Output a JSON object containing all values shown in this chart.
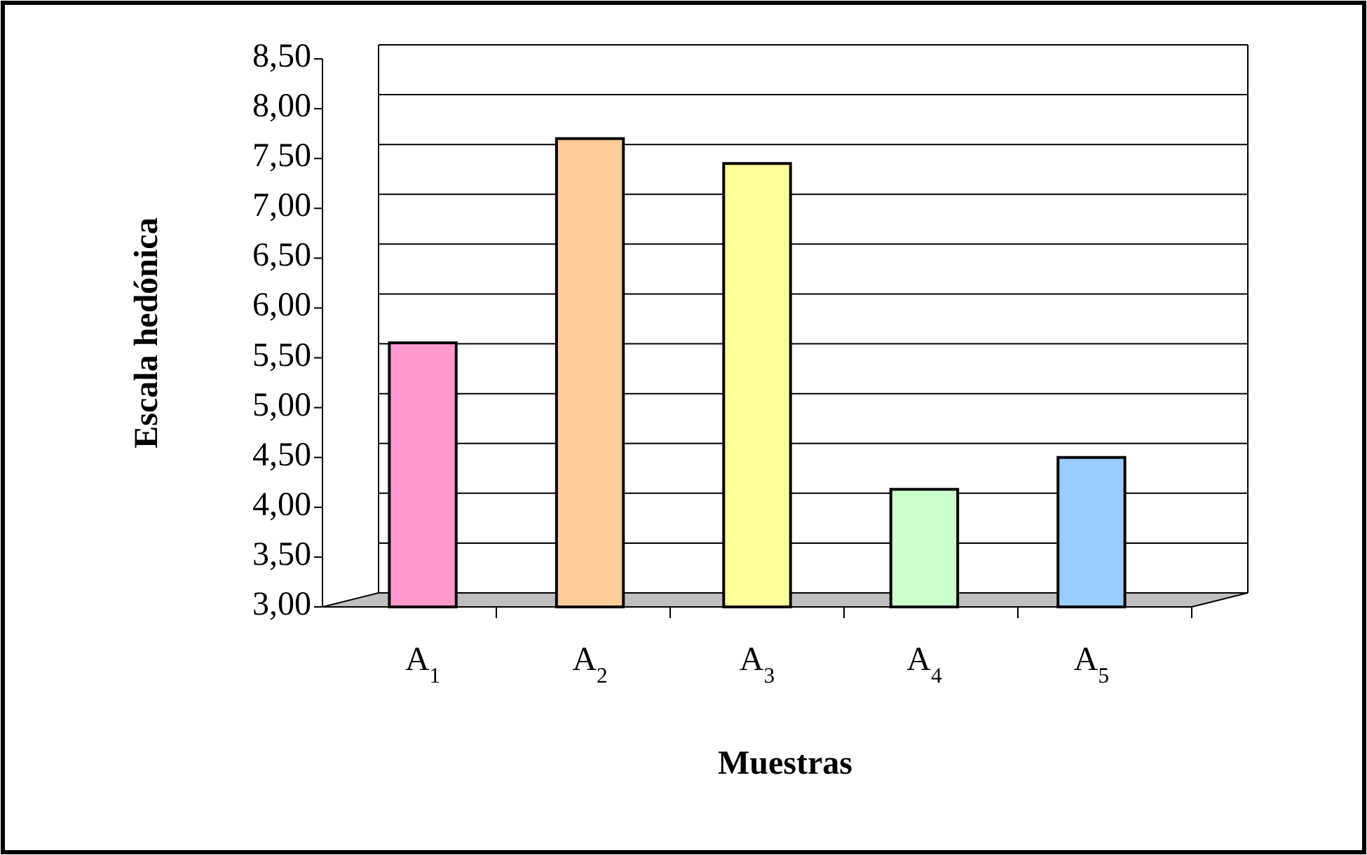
{
  "chart_data": {
    "type": "bar",
    "xlabel": "Muestras",
    "ylabel": "Escala hedónica",
    "categories": [
      "A$_{1}$",
      "A$_{2}$",
      "A$_{3}$",
      "A$_{4}$",
      "A$_{5}$"
    ],
    "values": [
      5.65,
      7.7,
      7.45,
      4.18,
      4.5
    ],
    "colors": [
      "#ff99cc",
      "#ffcc99",
      "#ffff99",
      "#ccffcc",
      "#99ccff"
    ],
    "ylim": [
      3,
      8.5
    ],
    "yticks": [
      {
        "value": 3,
        "label": "3,00"
      },
      {
        "value": 3.5,
        "label": "3,50"
      },
      {
        "value": 4,
        "label": "4,00"
      },
      {
        "value": 4.5,
        "label": "4,50"
      },
      {
        "value": 5,
        "label": "5,00"
      },
      {
        "value": 5.5,
        "label": "5,50"
      },
      {
        "value": 6,
        "label": "6,00"
      },
      {
        "value": 6.5,
        "label": "6,50"
      },
      {
        "value": 7,
        "label": "7,00"
      },
      {
        "value": 7.5,
        "label": "7,50"
      },
      {
        "value": 8,
        "label": "8,00"
      },
      {
        "value": 8.5,
        "label": "8,50"
      }
    ],
    "grid": "y"
  }
}
